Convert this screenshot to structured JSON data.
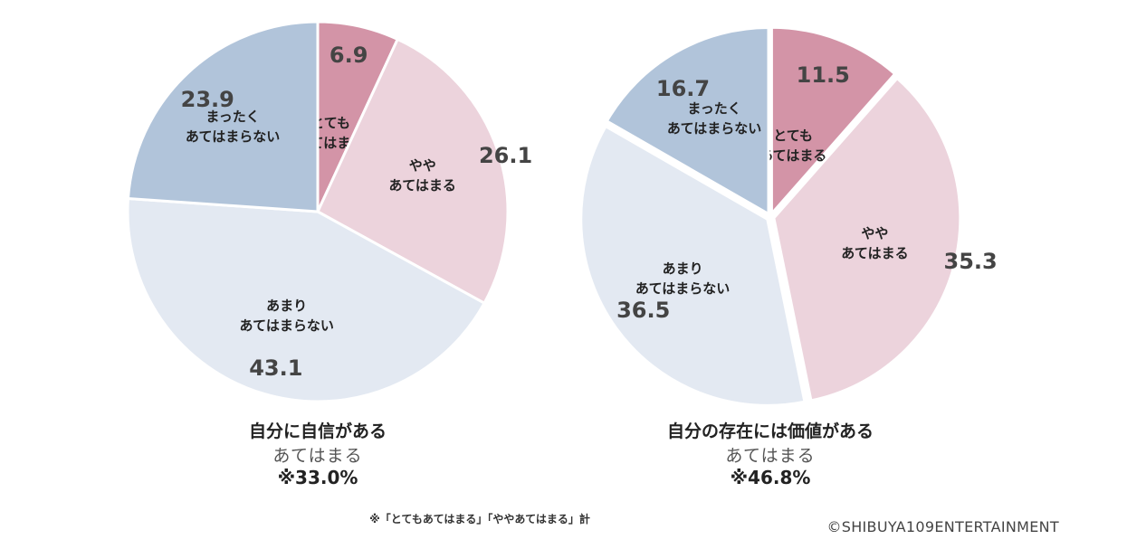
{
  "chart_data": [
    {
      "type": "pie",
      "title": "自分に自信がある",
      "summary_label": "あてはまる",
      "summary_value": "※33.0%",
      "slices": [
        {
          "label_lines": [
            "とても",
            "あてはまる"
          ],
          "value": 6.9,
          "display": "6.9",
          "color": "#d394a7"
        },
        {
          "label_lines": [
            "やや",
            "あてはまる"
          ],
          "value": 26.1,
          "display": "26.1",
          "color": "#ecd3dc"
        },
        {
          "label_lines": [
            "あまり",
            "あてはまらない"
          ],
          "value": 43.1,
          "display": "43.1",
          "color": "#e3e9f2"
        },
        {
          "label_lines": [
            "まったく",
            "あてはまらない"
          ],
          "value": 23.9,
          "display": "23.9",
          "color": "#b1c4da"
        }
      ]
    },
    {
      "type": "pie",
      "title": "自分の存在には価値がある",
      "summary_label": "あてはまる",
      "summary_value": "※46.8%",
      "slices": [
        {
          "label_lines": [
            "とても",
            "あてはまる"
          ],
          "value": 11.5,
          "display": "11.5",
          "color": "#d394a7"
        },
        {
          "label_lines": [
            "やや",
            "あてはまる"
          ],
          "value": 35.3,
          "display": "35.3",
          "color": "#ecd3dc"
        },
        {
          "label_lines": [
            "あまり",
            "あてはまらない"
          ],
          "value": 36.5,
          "display": "36.5",
          "color": "#e3e9f2"
        },
        {
          "label_lines": [
            "まったく",
            "あてはまらない"
          ],
          "value": 16.7,
          "display": "16.7",
          "color": "#b1c4da"
        }
      ]
    }
  ],
  "footnote": "※「とてもあてはまる」「ややあてはまる」計",
  "copyright": "©SHIBUYA109ENTERTAINMENT"
}
